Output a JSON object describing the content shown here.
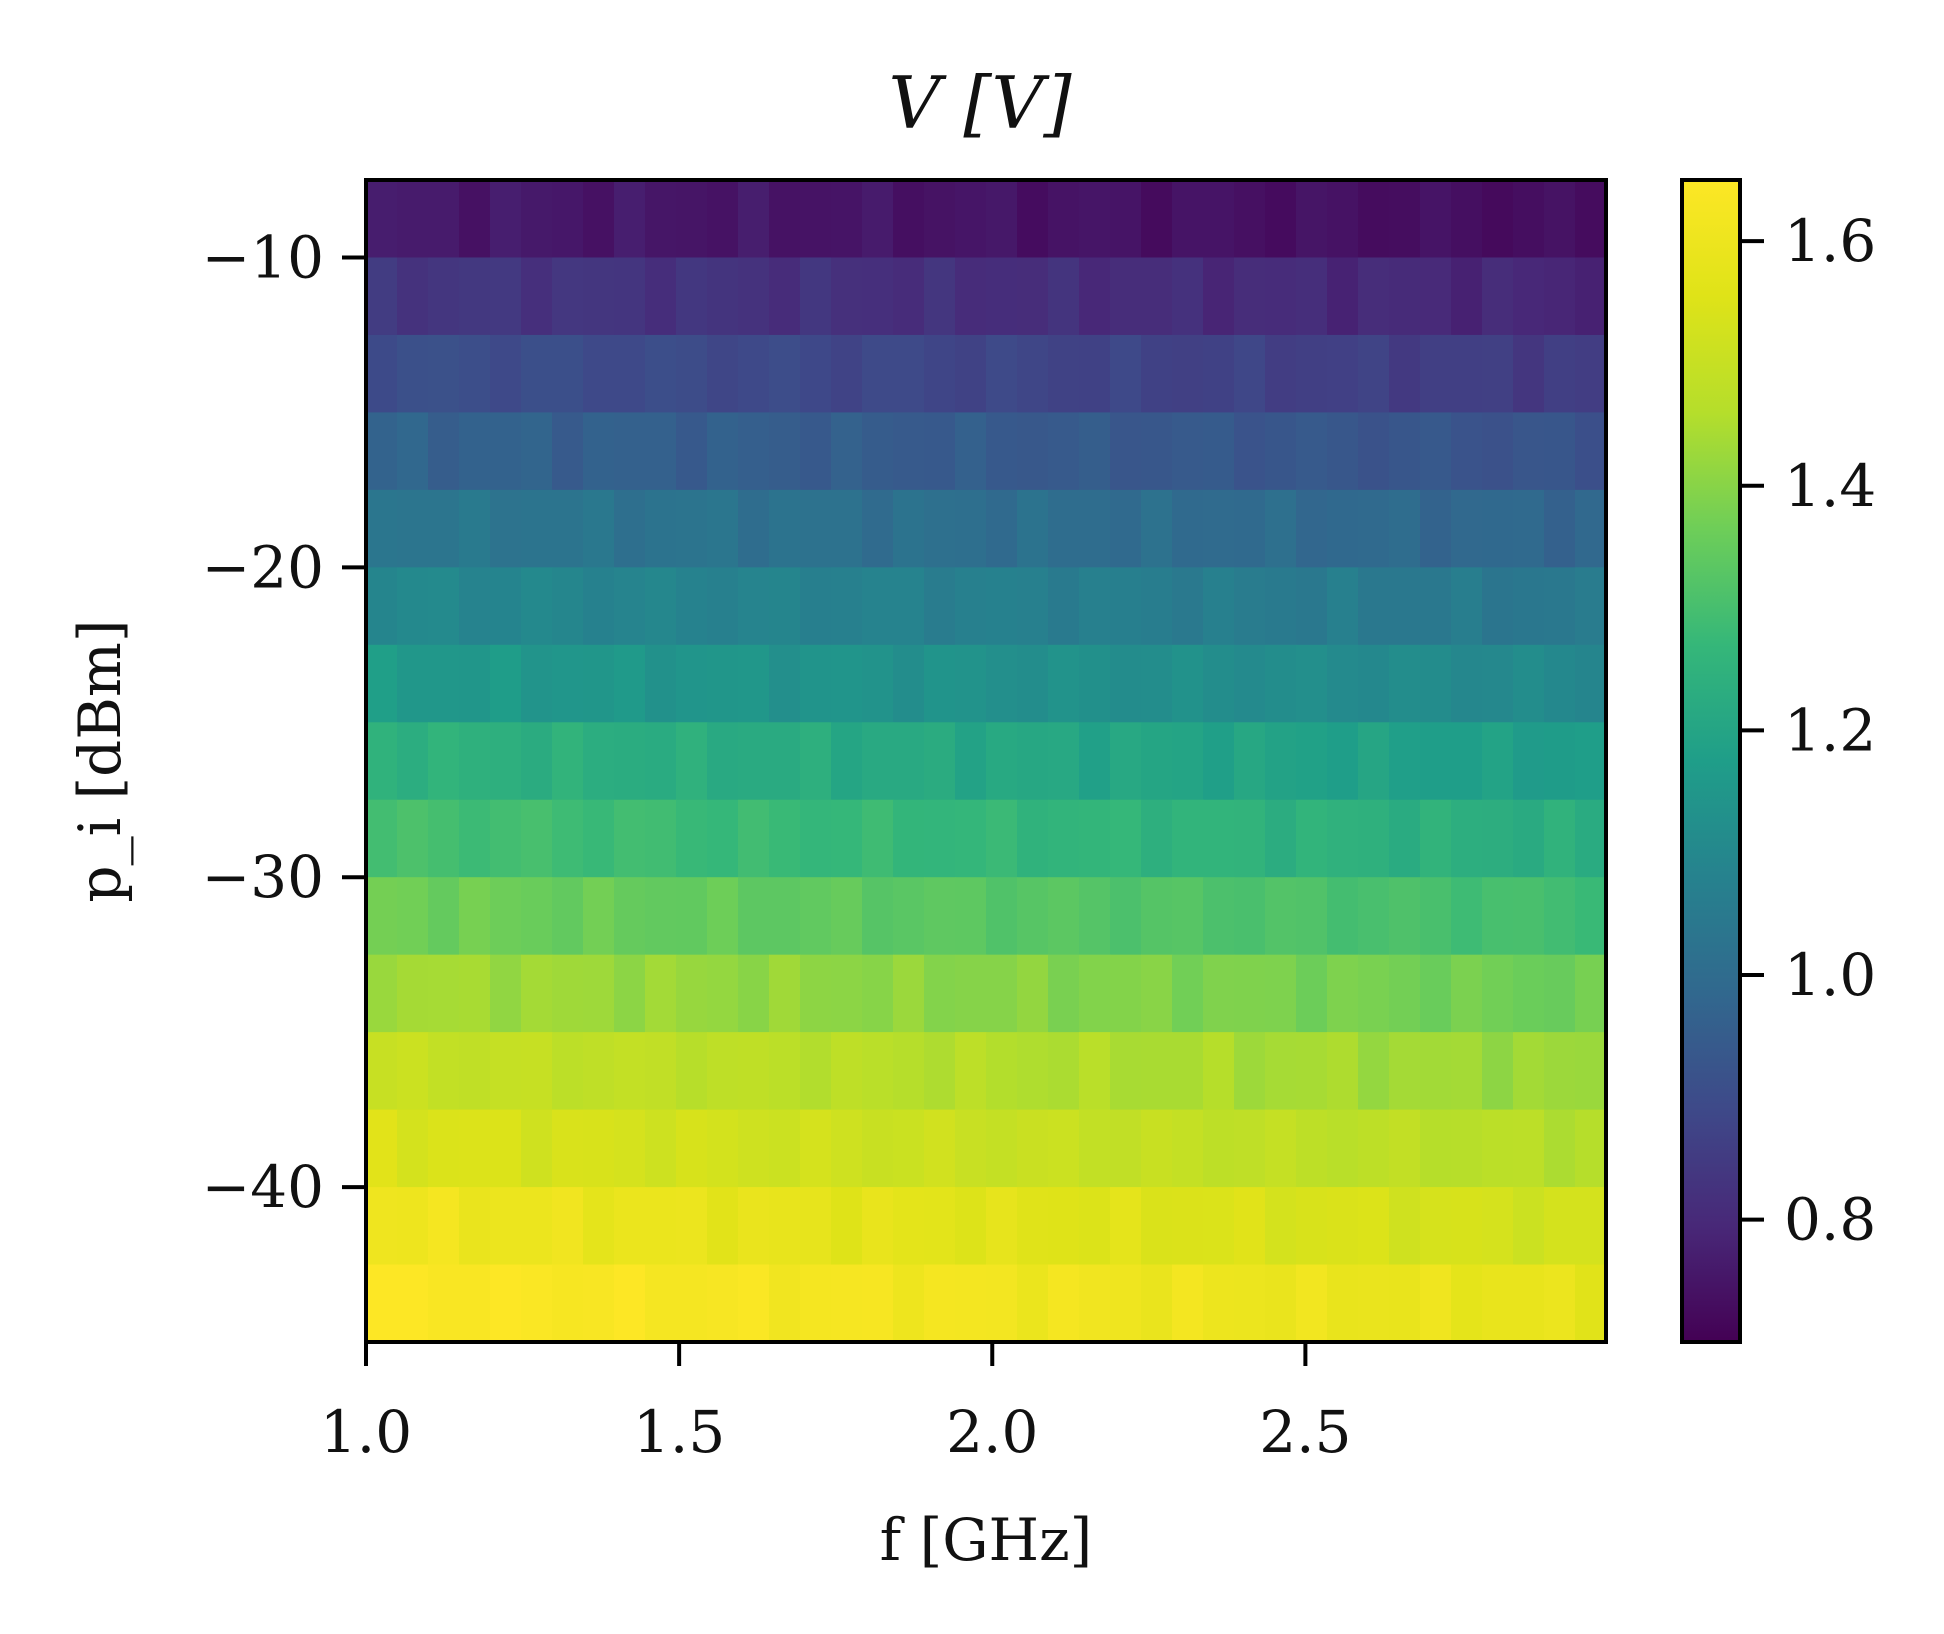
{
  "chart_data": {
    "type": "heatmap",
    "title": "V [V]",
    "xlabel": "f [GHz]",
    "ylabel": "p_i [dBm]",
    "x_range": [
      1.0,
      2.98
    ],
    "y_range": [
      -45,
      -7.5
    ],
    "x_ticks": [
      "1.0",
      "1.5",
      "2.0",
      "2.5"
    ],
    "x_tick_values": [
      1.0,
      1.5,
      2.0,
      2.5
    ],
    "y_ticks": [
      "−10",
      "−20",
      "−30",
      "−40"
    ],
    "y_tick_values": [
      -10,
      -20,
      -30,
      -40
    ],
    "colorbar": {
      "colormap": "viridis",
      "range": [
        0.7,
        1.65
      ],
      "ticks": [
        "0.8",
        "1.0",
        "1.2",
        "1.4",
        "1.6"
      ],
      "tick_values": [
        0.8,
        1.0,
        1.2,
        1.4,
        1.6
      ]
    },
    "rows": [
      {
        "p_i": -10,
        "v_start": 0.76,
        "v_end": 0.73
      },
      {
        "p_i": -12.5,
        "v_start": 0.84,
        "v_end": 0.79
      },
      {
        "p_i": -15,
        "v_start": 0.91,
        "v_end": 0.85
      },
      {
        "p_i": -17.5,
        "v_start": 0.97,
        "v_end": 0.92
      },
      {
        "p_i": -20,
        "v_start": 1.04,
        "v_end": 0.98
      },
      {
        "p_i": -22.5,
        "v_start": 1.1,
        "v_end": 1.04
      },
      {
        "p_i": -25,
        "v_start": 1.16,
        "v_end": 1.1
      },
      {
        "p_i": -27.5,
        "v_start": 1.25,
        "v_end": 1.17
      },
      {
        "p_i": -30,
        "v_start": 1.3,
        "v_end": 1.23
      },
      {
        "p_i": -32.5,
        "v_start": 1.37,
        "v_end": 1.29
      },
      {
        "p_i": -35,
        "v_start": 1.44,
        "v_end": 1.36
      },
      {
        "p_i": -37.5,
        "v_start": 1.5,
        "v_end": 1.42
      },
      {
        "p_i": -40,
        "v_start": 1.55,
        "v_end": 1.46
      },
      {
        "p_i": -42.5,
        "v_start": 1.61,
        "v_end": 1.52
      },
      {
        "p_i": -45,
        "v_start": 1.65,
        "v_end": 1.58
      }
    ],
    "grid": false,
    "legend": "none"
  }
}
